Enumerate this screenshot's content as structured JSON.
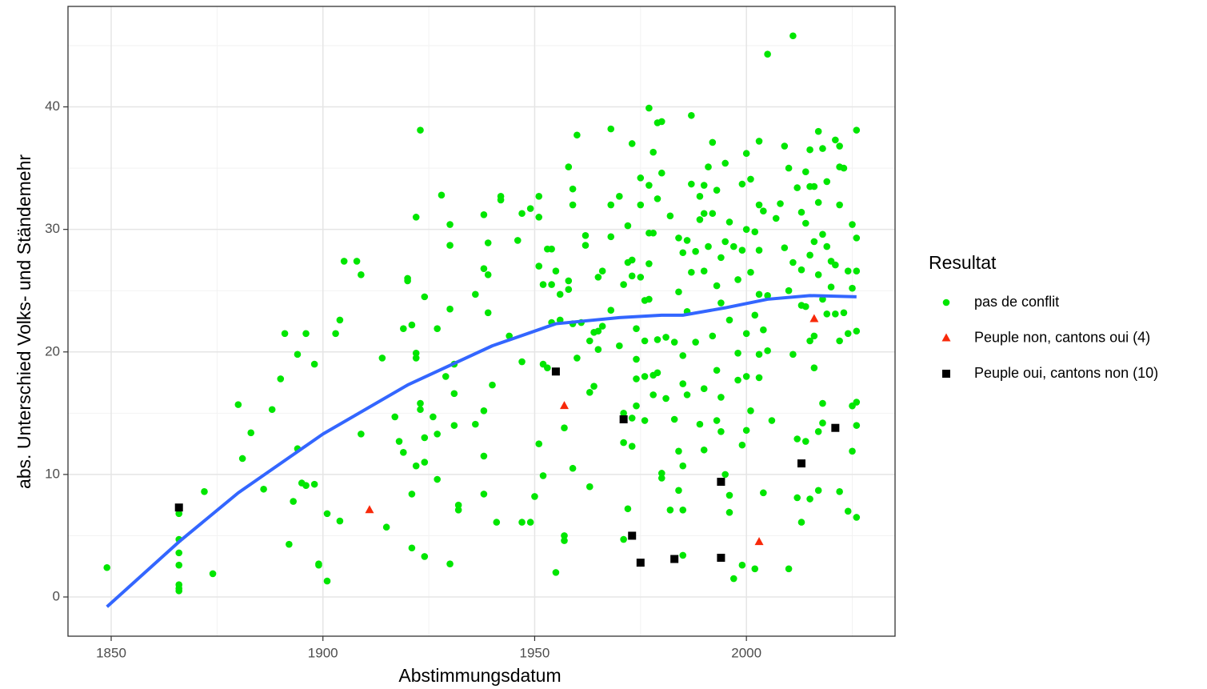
{
  "chart_data": {
    "type": "scatter",
    "xlabel": "Abstimmungsdatum",
    "ylabel": "abs. Unterschied Volks- und Ständemehr",
    "legend_title": "Resultat",
    "legend": "right",
    "grid": true,
    "xlim": [
      1839.8,
      2035.1
    ],
    "ylim": [
      -3.2,
      48.2
    ],
    "xticks": [
      1850,
      1900,
      1950,
      2000
    ],
    "yticks": [
      0,
      10,
      20,
      30,
      40
    ],
    "series": [
      {
        "name": "pas de conflit",
        "color": "#00e600",
        "shape": "circle",
        "x": [
          1849,
          1866,
          1866,
          1866,
          1866,
          1866,
          1866,
          1866,
          1872,
          1874,
          1880,
          1881,
          1883,
          1886,
          1888,
          1890,
          1891,
          1892,
          1893,
          1894,
          1894,
          1895,
          1896,
          1896,
          1898,
          1898,
          1899,
          1899,
          1901,
          1901,
          1903,
          1904,
          1904,
          1905,
          1908,
          1909,
          1909,
          1915,
          1914,
          1917,
          1918,
          1919,
          1919,
          1920,
          1920,
          1921,
          1921,
          1921,
          1922,
          1922,
          1922,
          1922,
          1923,
          1923,
          1923,
          1924,
          1924,
          1924,
          1924,
          1926,
          1927,
          1927,
          1927,
          1928,
          1929,
          1930,
          1930,
          1930,
          1930,
          1931,
          1931,
          1931,
          1932,
          1932,
          1936,
          1936,
          1938,
          1938,
          1938,
          1938,
          1938,
          1939,
          1939,
          1939,
          1940,
          1941,
          1942,
          1942,
          1944,
          1946,
          1947,
          1947,
          1947,
          1949,
          1949,
          1950,
          1951,
          1951,
          1951,
          1951,
          1952,
          1952,
          1952,
          1953,
          1953,
          1954,
          1954,
          1954,
          1955,
          1955,
          1956,
          1956,
          1957,
          1957,
          1957,
          1958,
          1958,
          1958,
          1959,
          1959,
          1959,
          1959,
          1960,
          1960,
          1961,
          1962,
          1962,
          1963,
          1963,
          1963,
          1964,
          1964,
          1965,
          1965,
          1965,
          1966,
          1966,
          1968,
          1968,
          1968,
          1968,
          1970,
          1970,
          1971,
          1971,
          1971,
          1971,
          1972,
          1972,
          1972,
          1973,
          1973,
          1973,
          1973,
          1973,
          1974,
          1974,
          1974,
          1974,
          1975,
          1975,
          1975,
          1976,
          1976,
          1976,
          1976,
          1977,
          1977,
          1977,
          1977,
          1977,
          1978,
          1978,
          1978,
          1978,
          1979,
          1979,
          1979,
          1979,
          1980,
          1980,
          1980,
          1980,
          1981,
          1981,
          1982,
          1982,
          1983,
          1983,
          1984,
          1984,
          1984,
          1984,
          1985,
          1985,
          1985,
          1985,
          1985,
          1985,
          1986,
          1986,
          1986,
          1987,
          1987,
          1987,
          1988,
          1988,
          1989,
          1989,
          1989,
          1990,
          1990,
          1990,
          1990,
          1990,
          1991,
          1991,
          1992,
          1992,
          1992,
          1993,
          1993,
          1993,
          1993,
          1994,
          1994,
          1994,
          1994,
          1995,
          1995,
          1995,
          1996,
          1996,
          1996,
          1996,
          1997,
          1997,
          1998,
          1998,
          1998,
          1999,
          1999,
          1999,
          1999,
          2000,
          2000,
          2000,
          2000,
          2000,
          2001,
          2001,
          2001,
          2002,
          2002,
          2002,
          2003,
          2003,
          2003,
          2003,
          2003,
          2003,
          2004,
          2004,
          2004,
          2005,
          2005,
          2005,
          2006,
          2007,
          2008,
          2009,
          2009,
          2010,
          2010,
          2010,
          2011,
          2011,
          2011,
          2012,
          2012,
          2012,
          2013,
          2013,
          2013,
          2013,
          2014,
          2014,
          2014,
          2014,
          2015,
          2015,
          2015,
          2015,
          2015,
          2016,
          2016,
          2016,
          2016,
          2017,
          2017,
          2017,
          2017,
          2017,
          2018,
          2018,
          2018,
          2018,
          2018,
          2019,
          2019,
          2019,
          2020,
          2020,
          2021,
          2021,
          2021,
          2022,
          2022,
          2022,
          2022,
          2022,
          2023,
          2023,
          2024,
          2024,
          2024,
          2025,
          2025,
          2025,
          2025,
          2026,
          2026,
          2026,
          2026,
          2026,
          2026,
          2026
        ],
        "values": [
          2.4,
          6.8,
          4.7,
          3.6,
          2.6,
          1.0,
          0.7,
          0.5,
          8.6,
          1.9,
          15.7,
          11.3,
          13.4,
          8.8,
          15.3,
          17.8,
          21.5,
          4.3,
          7.8,
          12.1,
          19.8,
          9.3,
          21.5,
          9.1,
          19.0,
          9.2,
          2.7,
          2.6,
          6.8,
          1.3,
          21.5,
          22.6,
          6.2,
          27.4,
          27.4,
          26.3,
          13.3,
          5.7,
          19.5,
          14.7,
          12.7,
          11.8,
          21.9,
          26.0,
          25.8,
          22.2,
          8.4,
          4.0,
          31.0,
          19.9,
          19.5,
          10.7,
          38.1,
          15.8,
          15.3,
          13.0,
          11.0,
          24.5,
          3.3,
          14.7,
          21.9,
          9.6,
          13.3,
          32.8,
          18.0,
          28.7,
          30.4,
          23.5,
          2.7,
          16.6,
          19.0,
          14.0,
          7.5,
          7.1,
          24.7,
          14.1,
          31.2,
          26.8,
          15.2,
          11.5,
          8.4,
          28.9,
          26.3,
          23.2,
          17.3,
          6.1,
          32.7,
          32.4,
          21.3,
          29.1,
          31.3,
          19.2,
          6.1,
          31.7,
          6.1,
          8.2,
          32.7,
          31.0,
          27.0,
          12.5,
          25.5,
          19.0,
          9.9,
          28.4,
          18.7,
          28.4,
          25.5,
          22.4,
          26.6,
          2.0,
          24.7,
          22.6,
          4.6,
          5.0,
          13.8,
          35.1,
          25.8,
          25.1,
          33.3,
          32.0,
          10.5,
          22.3,
          37.7,
          19.5,
          22.4,
          29.5,
          28.7,
          20.9,
          9.0,
          16.7,
          17.2,
          21.6,
          26.1,
          21.7,
          20.2,
          26.6,
          22.1,
          32.0,
          29.4,
          23.4,
          38.2,
          32.7,
          20.5,
          25.5,
          15.0,
          12.6,
          4.7,
          27.3,
          7.2,
          30.3,
          37.0,
          27.5,
          26.2,
          14.6,
          12.3,
          21.9,
          19.4,
          17.8,
          15.6,
          34.2,
          32.0,
          26.1,
          14.4,
          24.2,
          18.0,
          20.9,
          39.9,
          33.6,
          29.7,
          27.2,
          24.3,
          29.7,
          36.3,
          18.1,
          16.5,
          38.7,
          32.5,
          21.0,
          18.3,
          38.8,
          34.6,
          10.1,
          9.7,
          21.2,
          16.2,
          31.1,
          7.1,
          20.8,
          14.5,
          29.3,
          24.9,
          11.9,
          8.7,
          28.1,
          19.7,
          17.4,
          10.7,
          7.1,
          3.4,
          29.1,
          23.3,
          16.5,
          39.3,
          26.5,
          33.7,
          28.2,
          20.8,
          30.8,
          32.7,
          14.1,
          31.3,
          33.6,
          26.6,
          17.0,
          12.0,
          35.1,
          28.6,
          37.1,
          31.3,
          21.3,
          33.2,
          25.4,
          18.5,
          14.4,
          27.7,
          24.0,
          16.3,
          13.5,
          35.4,
          29.0,
          10.0,
          30.6,
          8.3,
          6.9,
          22.6,
          1.5,
          28.6,
          25.9,
          19.9,
          17.7,
          33.7,
          28.3,
          12.4,
          2.6,
          36.2,
          30.0,
          21.5,
          13.6,
          18.0,
          34.1,
          26.5,
          15.2,
          29.8,
          23.0,
          2.3,
          37.2,
          32.0,
          28.3,
          24.7,
          19.8,
          17.9,
          31.5,
          21.8,
          8.5,
          24.6,
          20.1,
          44.3,
          14.4,
          30.9,
          32.1,
          36.8,
          28.5,
          35.0,
          25.0,
          2.3,
          45.8,
          27.3,
          19.8,
          33.4,
          12.9,
          8.1,
          6.1,
          31.4,
          26.7,
          23.8,
          34.7,
          30.5,
          23.7,
          12.7,
          36.5,
          33.5,
          27.9,
          20.9,
          8.0,
          33.5,
          29.0,
          21.3,
          18.7,
          38.0,
          32.2,
          26.3,
          13.5,
          8.7,
          36.6,
          29.6,
          24.3,
          15.8,
          14.2,
          33.9,
          28.6,
          23.1,
          27.4,
          25.3,
          37.3,
          27.1,
          23.1,
          36.8,
          35.1,
          32.0,
          20.9,
          8.6,
          35.0,
          23.2,
          26.6,
          21.5,
          7.0,
          30.4,
          25.2,
          15.6,
          11.9,
          38.1,
          29.3,
          26.6,
          21.7,
          15.9,
          14.0,
          6.5
        ]
      },
      {
        "name": "Peuple non, cantons oui (4)",
        "color": "#f8290a",
        "shape": "triangle",
        "x": [
          1911,
          1957,
          2003,
          2016
        ],
        "values": [
          7.1,
          15.6,
          4.5,
          22.7
        ]
      },
      {
        "name": "Peuple oui, cantons non (10)",
        "color": "#000000",
        "shape": "square",
        "x": [
          1866,
          1955,
          1971,
          1973,
          1975,
          1983,
          1994,
          1994,
          2013,
          2021
        ],
        "values": [
          7.3,
          18.4,
          14.5,
          5.0,
          2.8,
          3.1,
          9.4,
          3.2,
          10.9,
          13.8
        ]
      }
    ],
    "trend": {
      "color": "#3366ff",
      "x": [
        1849,
        1866,
        1880,
        1900,
        1920,
        1940,
        1955,
        1970,
        1980,
        1985,
        1995,
        2005,
        2015,
        2026
      ],
      "values": [
        -0.8,
        4.5,
        8.5,
        13.3,
        17.3,
        20.5,
        22.3,
        22.8,
        23.0,
        23.0,
        23.6,
        24.3,
        24.6,
        24.5
      ]
    }
  }
}
